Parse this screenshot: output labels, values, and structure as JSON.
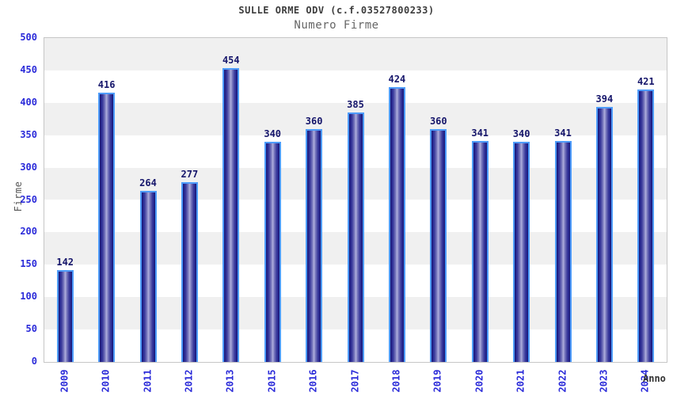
{
  "header": {
    "title": "SULLE ORME ODV (c.f.03527800233)",
    "subtitle": "Numero Firme"
  },
  "chart_data": {
    "type": "bar",
    "title": "SULLE ORME ODV (c.f.03527800233)",
    "subtitle": "Numero Firme",
    "xlabel": "Anno",
    "ylabel": "Firme",
    "categories": [
      "2009",
      "2010",
      "2011",
      "2012",
      "2013",
      "2015",
      "2016",
      "2017",
      "2018",
      "2019",
      "2020",
      "2021",
      "2022",
      "2023",
      "2024"
    ],
    "values": [
      142,
      416,
      264,
      277,
      454,
      340,
      360,
      385,
      424,
      360,
      341,
      340,
      341,
      394,
      421
    ],
    "ylim": [
      0,
      500
    ],
    "ytick_step": 50,
    "grid": "horizontal-alternating-bands",
    "legend": "none",
    "colors": {
      "bar_edge_dark": "#16166b",
      "bar_center_light": "#b0b0dd",
      "bar_border": "#4e9cfb",
      "value_label": "#16166b",
      "tick_label": "#2b2bd9",
      "band_gray": "#f0f0f0",
      "band_white": "#ffffff",
      "plot_border": "#c6c6c6",
      "title_color": "#3c3c3c",
      "subtitle_color": "#666666",
      "axis_label_color": "#555555"
    }
  }
}
